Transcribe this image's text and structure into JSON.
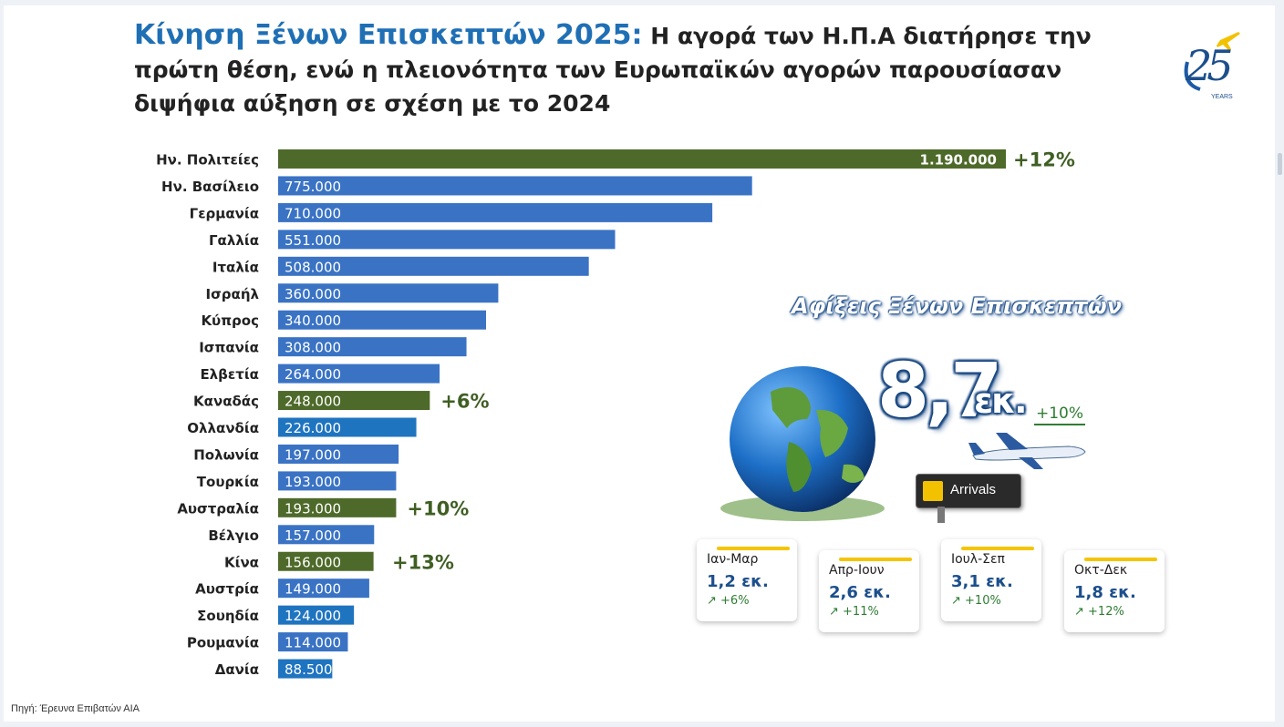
{
  "title": {
    "lead": "Κίνηση Ξένων Επισκεπτών 2025:",
    "rest": "Η αγορά των Η.Π.Α διατήρησε την πρώτη θέση, ενώ η πλειονότητα των Ευρωπαϊκών αγορών παρουσίασαν διψήφια αύξηση σε σχέση με το 2024"
  },
  "logo": {
    "number": "25",
    "text": "YEARS"
  },
  "chart_data": {
    "type": "bar",
    "orientation": "horizontal",
    "categories": [
      "Ην. Πολιτείες",
      "Ην. Βασίλειο",
      "Γερμανία",
      "Γαλλία",
      "Ιταλία",
      "Ισραήλ",
      "Κύπρος",
      "Ισπανία",
      "Ελβετία",
      "Καναδάς",
      "Ολλανδία",
      "Πολωνία",
      "Τουρκία",
      "Αυστραλία",
      "Βέλγιο",
      "Κίνα",
      "Αυστρία",
      "Σουηδία",
      "Ρουμανία",
      "Δανία"
    ],
    "values": [
      1190000,
      775000,
      710000,
      551000,
      508000,
      360000,
      340000,
      308000,
      264000,
      248000,
      226000,
      197000,
      193000,
      193000,
      157000,
      156000,
      149000,
      124000,
      114000,
      88500
    ],
    "labels": [
      "1.190.000",
      "775.000",
      "710.000",
      "551.000",
      "508.000",
      "360.000",
      "340.000",
      "308.000",
      "264.000",
      "248.000",
      "226.000",
      "197.000",
      "193.000",
      "193.000",
      "157.000",
      "156.000",
      "149.000",
      "124.000",
      "114.000",
      "88.500"
    ],
    "highlight": [
      true,
      false,
      false,
      false,
      false,
      false,
      false,
      false,
      false,
      true,
      false,
      false,
      false,
      true,
      false,
      true,
      false,
      false,
      false,
      false
    ],
    "annotations": [
      "+12%",
      "",
      "",
      "",
      "",
      "",
      "",
      "",
      "",
      "+6%",
      "",
      "",
      "",
      "+10%",
      "",
      "+13%",
      "",
      "",
      "",
      ""
    ],
    "colors": {
      "bar": "#3a73c4",
      "bar_alt": "#1f74c0",
      "highlight": "#4e6a2a",
      "label": "#ffffff",
      "category": "#222222",
      "annotation": "#3f5f23"
    },
    "title": "",
    "xlabel": "",
    "ylabel": "",
    "xlim": [
      0,
      1190000
    ],
    "grid": false,
    "legend": "none"
  },
  "infographic": {
    "heading": "Αφίξεις Ξένων Επισκεπτών",
    "total_number": "8,7",
    "total_unit": "εκ.",
    "total_growth": "+10%",
    "arrivals_sign": "Arrivals",
    "quarters": [
      {
        "period": "Ιαν-Μαρ",
        "value": "1,2 εκ.",
        "growth": "↗ +6%"
      },
      {
        "period": "Απρ-Ιουν",
        "value": "2,6 εκ.",
        "growth": "↗ +11%"
      },
      {
        "period": "Ιουλ-Σεπ",
        "value": "3,1 εκ.",
        "growth": "↗ +10%"
      },
      {
        "period": "Οκτ-Δεκ",
        "value": "1,8 εκ.",
        "growth": "↗ +12%"
      }
    ]
  },
  "source": "Πηγή: Έρευνα Επιβατών ΑΙΑ"
}
